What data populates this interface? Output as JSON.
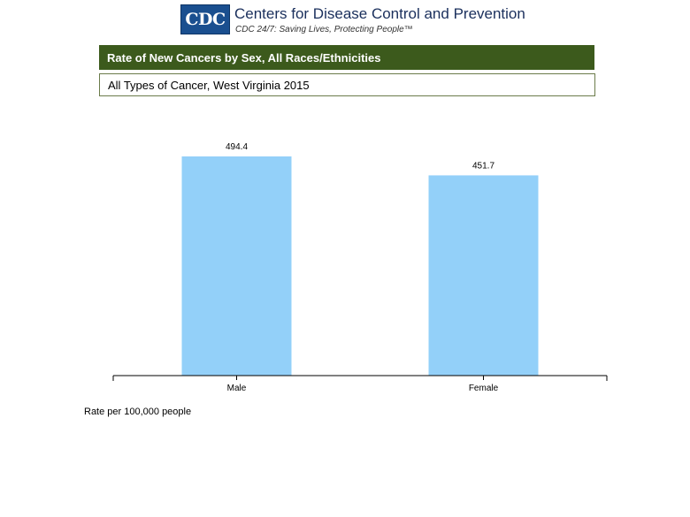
{
  "header": {
    "logo_text": "CDC",
    "org_name": "Centers for Disease Control and Prevention",
    "tagline": "CDC 24/7: Saving Lives, Protecting People™"
  },
  "title": "Rate of New Cancers by Sex, All Races/Ethnicities",
  "subtitle": "All Types of Cancer, West Virginia 2015",
  "footnote": "Rate per 100,000 people",
  "colors": {
    "bar": "#93d0f9",
    "title_bar": "#3c5a1c"
  },
  "chart_data": {
    "type": "bar",
    "categories": [
      "Male",
      "Female"
    ],
    "values": [
      494.4,
      451.7
    ],
    "value_labels": [
      "494.4",
      "451.7"
    ],
    "ylim": [
      0,
      500
    ],
    "grid": false,
    "xlabel": "",
    "ylabel": ""
  }
}
